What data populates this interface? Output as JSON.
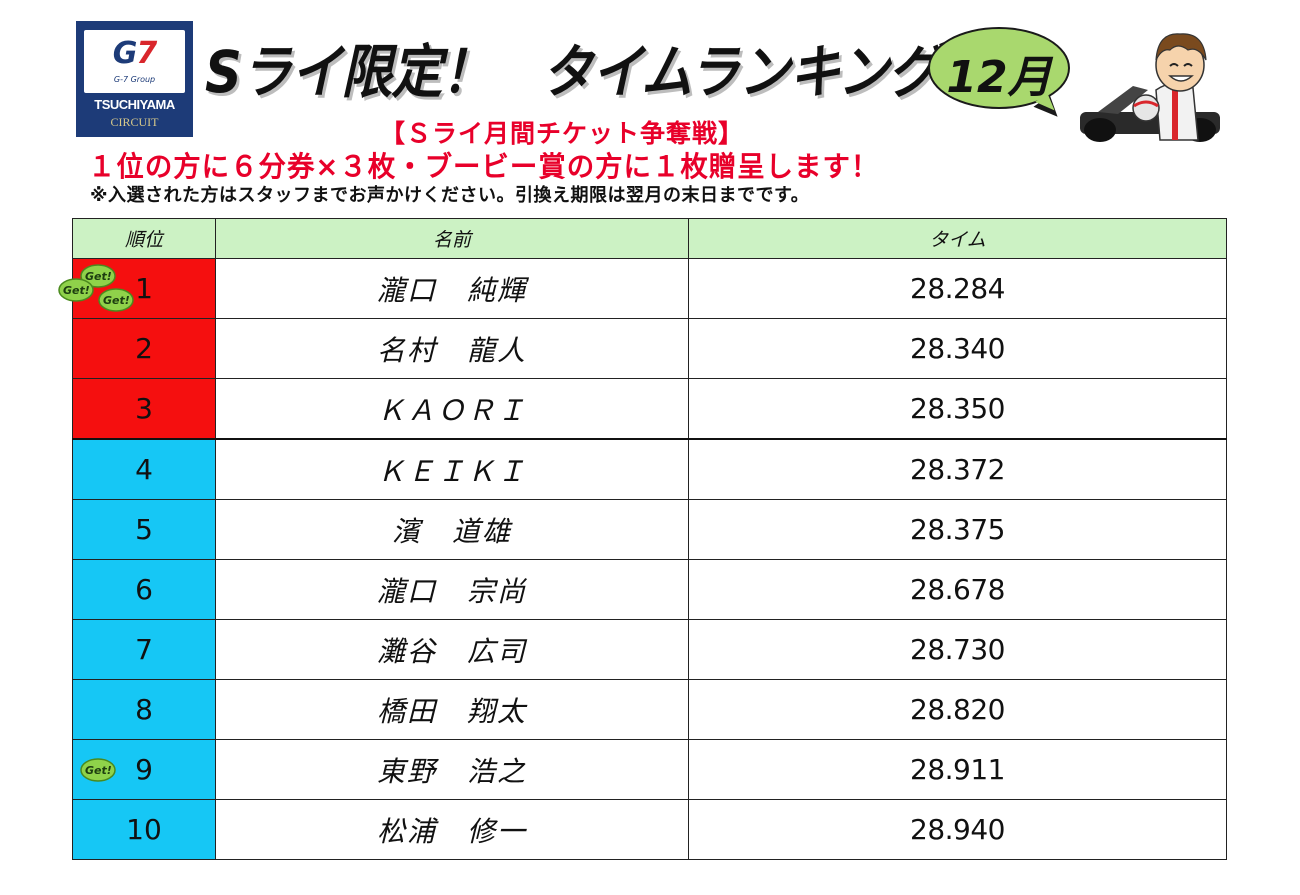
{
  "logo": {
    "g7": "G",
    "g7_seven": "7",
    "group": "G-7 Group",
    "name": "TSUCHIYAMA",
    "sub": "CIRCUIT"
  },
  "title": "Sライ限定！　タイムランキング",
  "month": "12月",
  "subtitle": "【Ｓライ月間チケット争奪戦】",
  "prize_line": "１位の方に６分券×３枚・ブービー賞の方に１枚贈呈します！",
  "note_line": "※入選された方はスタッフまでお声かけください。引換え期限は翌月の末日までです。",
  "table": {
    "headers": [
      "順位",
      "名前",
      "タイム"
    ],
    "rows": [
      {
        "rank": "1",
        "name": "瀧口　純輝",
        "time": "28.284",
        "color": "#f50f0f"
      },
      {
        "rank": "2",
        "name": "名村　龍人",
        "time": "28.340",
        "color": "#f50f0f"
      },
      {
        "rank": "3",
        "name": "ＫＡＯＲＩ",
        "time": "28.350",
        "color": "#f50f0f"
      },
      {
        "rank": "4",
        "name": "ＫＥＩＫＩ",
        "time": "28.372",
        "color": "#16c7f5"
      },
      {
        "rank": "5",
        "name": "濱　道雄",
        "time": "28.375",
        "color": "#16c7f5"
      },
      {
        "rank": "6",
        "name": "瀧口　宗尚",
        "time": "28.678",
        "color": "#16c7f5"
      },
      {
        "rank": "7",
        "name": "灘谷　広司",
        "time": "28.730",
        "color": "#16c7f5"
      },
      {
        "rank": "8",
        "name": "橋田　翔太",
        "time": "28.820",
        "color": "#16c7f5"
      },
      {
        "rank": "9",
        "name": "東野　浩之",
        "time": "28.911",
        "color": "#16c7f5"
      },
      {
        "rank": "10",
        "name": "松浦　修一",
        "time": "28.940",
        "color": "#16c7f5"
      }
    ]
  },
  "badge_text": "Get!"
}
